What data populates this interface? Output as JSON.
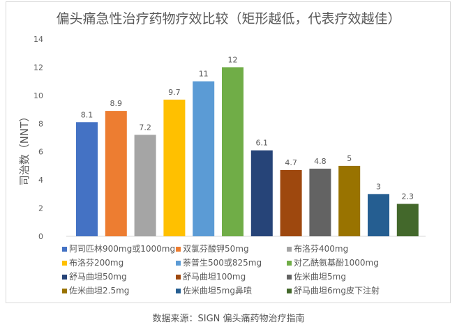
{
  "chart_data": {
    "type": "bar",
    "title": "偏头痛急性治疗药物疗效比较（矩形越低，代表疗效越佳）",
    "ylabel": "司治数（NNT）",
    "ylim": [
      0,
      14
    ],
    "yticks": [
      "0",
      "2",
      "4",
      "6",
      "8",
      "10",
      "12",
      "14"
    ],
    "grid": false,
    "legend_position": "bottom",
    "series": [
      {
        "name": "阿司匹林900mg或1000mg",
        "value": 8.1,
        "label": "8.1",
        "color": "#4472c4"
      },
      {
        "name": "双氯芬酸钾50mg",
        "value": 8.9,
        "label": "8.9",
        "color": "#ed7d31"
      },
      {
        "name": "布洛芬400mg",
        "value": 7.2,
        "label": "7.2",
        "color": "#a5a5a5"
      },
      {
        "name": "布洛芬200mg",
        "value": 9.7,
        "label": "9.7",
        "color": "#ffc000"
      },
      {
        "name": "萘普生500或825mg",
        "value": 11,
        "label": "11",
        "color": "#5b9bd5"
      },
      {
        "name": "对乙酰氨基酚1000mg",
        "value": 12,
        "label": "12",
        "color": "#70ad47"
      },
      {
        "name": "舒马曲坦50mg",
        "value": 6.1,
        "label": "6.1",
        "color": "#264478"
      },
      {
        "name": "舒马曲坦100mg",
        "value": 4.7,
        "label": "4.7",
        "color": "#9e480e"
      },
      {
        "name": "佐米曲坦5mg",
        "value": 4.8,
        "label": "4.8",
        "color": "#636363"
      },
      {
        "name": "佐米曲坦2.5mg",
        "value": 5,
        "label": "5",
        "color": "#997300"
      },
      {
        "name": "佐米曲坦5mg鼻喷",
        "value": 3,
        "label": "3",
        "color": "#255e91"
      },
      {
        "name": "舒马曲坦6mg皮下注射",
        "value": 2.3,
        "label": "2.3",
        "color": "#43682b"
      }
    ]
  },
  "footer": {
    "source": "数据来源：SIGN 偏头痛药物治疗指南"
  }
}
